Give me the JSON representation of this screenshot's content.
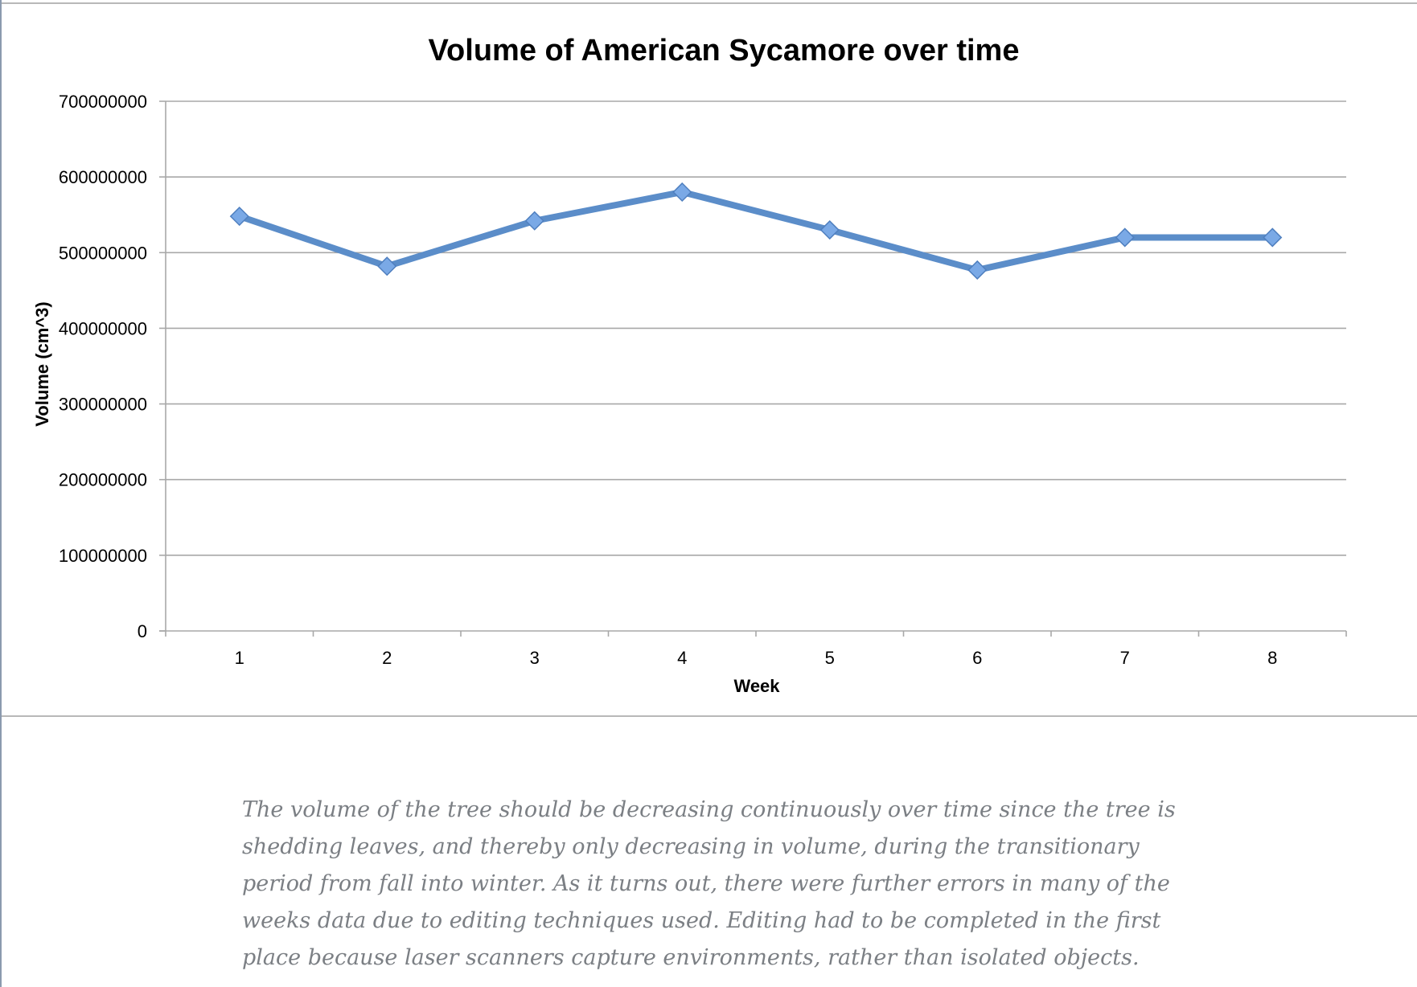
{
  "chart_data": {
    "type": "line",
    "title": "Volume of American Sycamore over time",
    "xlabel": "Week",
    "ylabel": "Volume (cm^3)",
    "categories": [
      "1",
      "2",
      "3",
      "4",
      "5",
      "6",
      "7",
      "8"
    ],
    "series": [
      {
        "values": [
          548000000,
          482000000,
          542000000,
          580000000,
          530000000,
          477000000,
          520000000,
          520000000
        ],
        "color": "#5b8dc9",
        "marker": "diamond"
      }
    ],
    "ylim": [
      0,
      700000000
    ],
    "yticks": [
      "0",
      "100000000",
      "200000000",
      "300000000",
      "400000000",
      "500000000",
      "600000000",
      "700000000"
    ],
    "grid": true,
    "legend": "none"
  },
  "caption": {
    "text": "The volume of the tree should be decreasing continuously over time since the tree is shedding leaves, and thereby only decreasing in volume, during the transitionary period from fall into winter. As it turns out, there were further errors in many of the weeks data due to editing techniques used. Editing had to be completed in the first place because laser scanners capture environments, rather than isolated objects."
  }
}
